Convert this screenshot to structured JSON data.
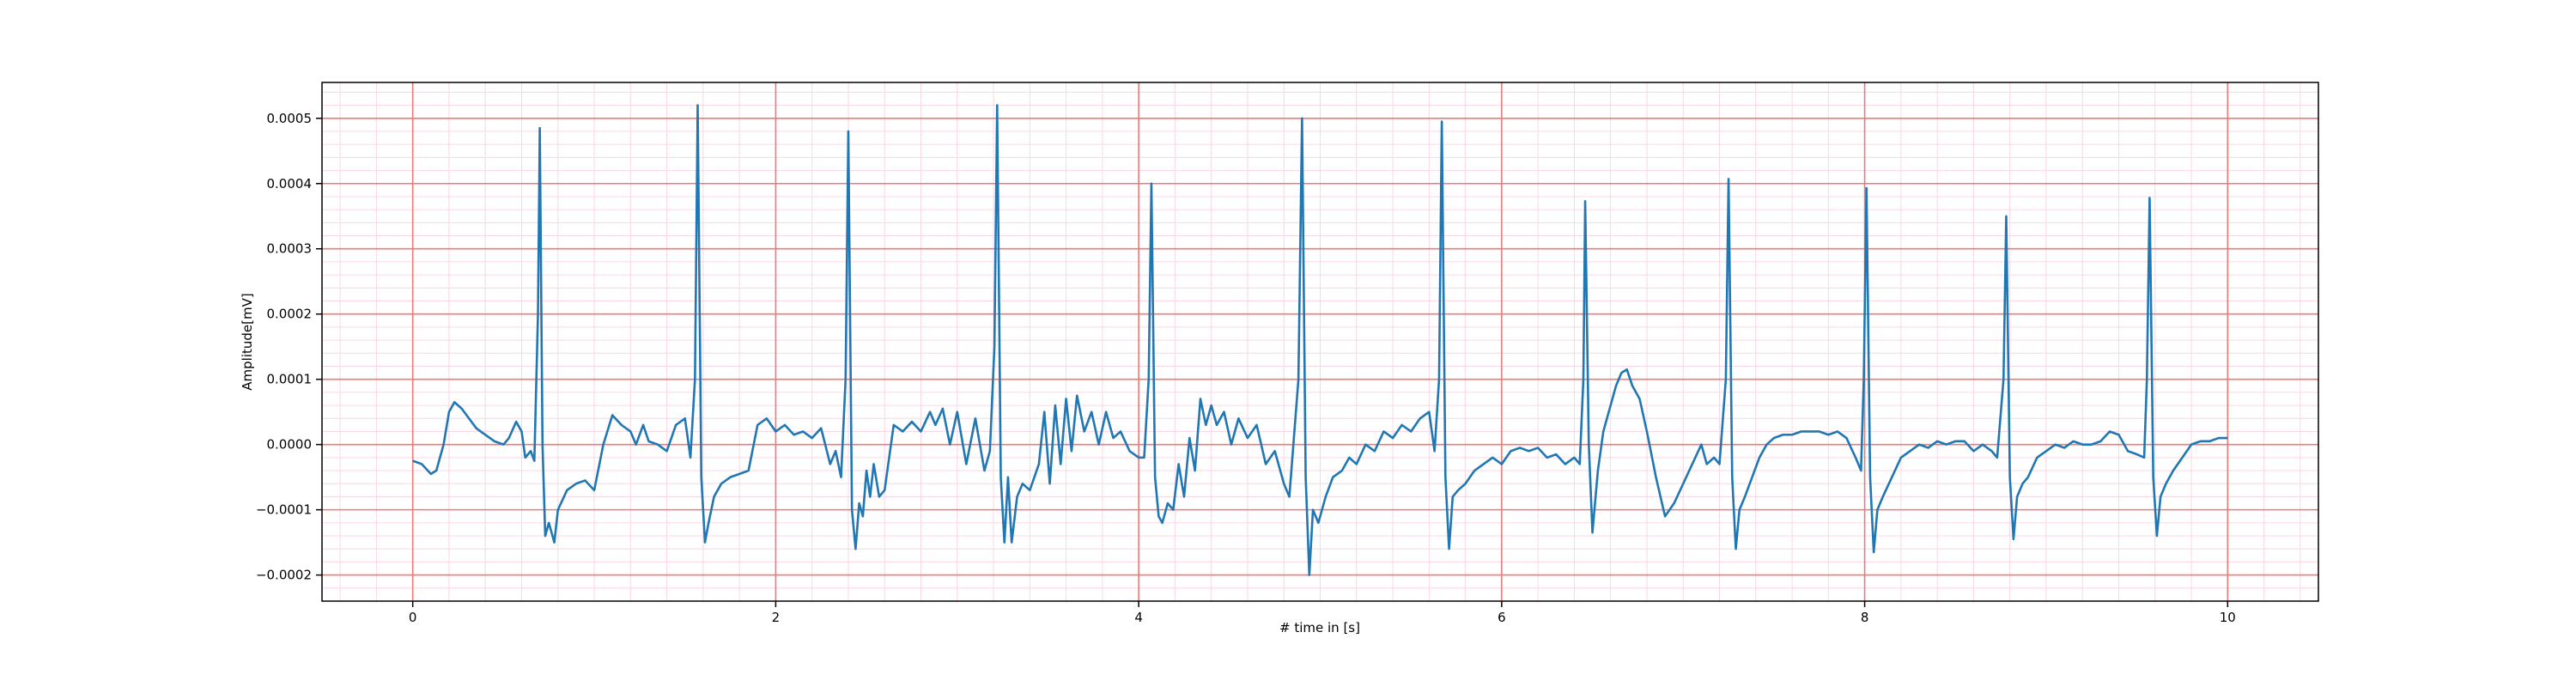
{
  "chart_data": {
    "type": "line",
    "xlabel": "# time in [s]",
    "ylabel": "Amplitude[mV]",
    "x": [
      0,
      0.05,
      0.1,
      0.13,
      0.17,
      0.2,
      0.23,
      0.27,
      0.31,
      0.35,
      0.4,
      0.45,
      0.5,
      0.53,
      0.57,
      0.6,
      0.62,
      0.65,
      0.67,
      0.69,
      0.7,
      0.715,
      0.73,
      0.75,
      0.78,
      0.8,
      0.85,
      0.9,
      0.95,
      1.0,
      1.05,
      1.1,
      1.15,
      1.2,
      1.23,
      1.27,
      1.3,
      1.35,
      1.4,
      1.45,
      1.5,
      1.53,
      1.555,
      1.57,
      1.59,
      1.61,
      1.63,
      1.66,
      1.7,
      1.75,
      1.8,
      1.85,
      1.9,
      1.95,
      2.0,
      2.05,
      2.1,
      2.15,
      2.2,
      2.25,
      2.3,
      2.33,
      2.36,
      2.385,
      2.4,
      2.42,
      2.44,
      2.46,
      2.48,
      2.5,
      2.52,
      2.54,
      2.57,
      2.6,
      2.65,
      2.7,
      2.75,
      2.8,
      2.85,
      2.88,
      2.92,
      2.96,
      3.0,
      3.05,
      3.1,
      3.15,
      3.18,
      3.205,
      3.22,
      3.24,
      3.26,
      3.28,
      3.3,
      3.33,
      3.36,
      3.4,
      3.45,
      3.48,
      3.51,
      3.54,
      3.57,
      3.6,
      3.63,
      3.66,
      3.7,
      3.74,
      3.78,
      3.82,
      3.86,
      3.9,
      3.95,
      4.0,
      4.03,
      4.055,
      4.07,
      4.09,
      4.11,
      4.13,
      4.16,
      4.19,
      4.22,
      4.25,
      4.28,
      4.31,
      4.34,
      4.37,
      4.4,
      4.43,
      4.47,
      4.51,
      4.55,
      4.6,
      4.65,
      4.7,
      4.75,
      4.8,
      4.83,
      4.88,
      4.9,
      4.92,
      4.94,
      4.96,
      4.99,
      5.03,
      5.07,
      5.12,
      5.16,
      5.2,
      5.25,
      5.3,
      5.35,
      5.4,
      5.45,
      5.5,
      5.55,
      5.6,
      5.63,
      5.655,
      5.67,
      5.69,
      5.71,
      5.73,
      5.76,
      5.8,
      5.85,
      5.9,
      5.95,
      6.0,
      6.05,
      6.1,
      6.15,
      6.2,
      6.25,
      6.3,
      6.35,
      6.4,
      6.43,
      6.45,
      6.46,
      6.48,
      6.5,
      6.53,
      6.56,
      6.6,
      6.63,
      6.66,
      6.69,
      6.72,
      6.76,
      6.8,
      6.85,
      6.9,
      6.95,
      7.0,
      7.05,
      7.1,
      7.13,
      7.17,
      7.2,
      7.235,
      7.25,
      7.27,
      7.29,
      7.31,
      7.34,
      7.38,
      7.42,
      7.46,
      7.5,
      7.55,
      7.6,
      7.65,
      7.7,
      7.75,
      7.8,
      7.85,
      7.9,
      7.95,
      7.98,
      7.995,
      8.01,
      8.03,
      8.05,
      8.07,
      8.1,
      8.15,
      8.2,
      8.25,
      8.3,
      8.35,
      8.4,
      8.45,
      8.5,
      8.55,
      8.6,
      8.65,
      8.7,
      8.73,
      8.765,
      8.78,
      8.8,
      8.82,
      8.84,
      8.87,
      8.9,
      8.95,
      9.0,
      9.05,
      9.1,
      9.15,
      9.2,
      9.25,
      9.3,
      9.35,
      9.4,
      9.45,
      9.5,
      9.54,
      9.555,
      9.57,
      9.59,
      9.61,
      9.63,
      9.66,
      9.7,
      9.75,
      9.8,
      9.85,
      9.9,
      9.95,
      10.0
    ],
    "values": [
      -2.5e-05,
      -3e-05,
      -4.5e-05,
      -4e-05,
      0,
      5e-05,
      6.5e-05,
      5.5e-05,
      4e-05,
      2.5e-05,
      1.5e-05,
      5e-06,
      0,
      1e-05,
      3.5e-05,
      2e-05,
      -2e-05,
      -1e-05,
      -2.5e-05,
      0.0002,
      0.000485,
      0,
      -0.00014,
      -0.00012,
      -0.00015,
      -0.0001,
      -7e-05,
      -6e-05,
      -5.5e-05,
      -7e-05,
      0,
      4.5e-05,
      3e-05,
      2e-05,
      0,
      3e-05,
      5e-06,
      0,
      -1e-05,
      3e-05,
      4e-05,
      -2e-05,
      0.0001,
      0.00052,
      -5e-05,
      -0.00015,
      -0.00012,
      -8e-05,
      -6e-05,
      -5e-05,
      -4.5e-05,
      -4e-05,
      3e-05,
      4e-05,
      2e-05,
      3e-05,
      1.5e-05,
      2e-05,
      1e-05,
      2.5e-05,
      -3e-05,
      -1e-05,
      -5e-05,
      0.0001,
      0.00048,
      -0.0001,
      -0.00016,
      -9e-05,
      -0.00011,
      -4e-05,
      -8e-05,
      -3e-05,
      -8e-05,
      -7e-05,
      3e-05,
      2e-05,
      3.5e-05,
      2e-05,
      5e-05,
      3e-05,
      5.5e-05,
      0,
      5e-05,
      -3e-05,
      4e-05,
      -4e-05,
      -1e-05,
      0.00015,
      0.00052,
      -5e-05,
      -0.00015,
      -5e-05,
      -0.00015,
      -8e-05,
      -6e-05,
      -7e-05,
      -3e-05,
      5e-05,
      -6e-05,
      6e-05,
      -3e-05,
      7e-05,
      -1e-05,
      7.5e-05,
      2e-05,
      5e-05,
      0,
      5e-05,
      1e-05,
      2e-05,
      -1e-05,
      -2e-05,
      -2e-05,
      0.0001,
      0.0004,
      -5e-05,
      -0.00011,
      -0.00012,
      -9e-05,
      -0.0001,
      -3e-05,
      -8e-05,
      1e-05,
      -4e-05,
      7e-05,
      3e-05,
      6e-05,
      3e-05,
      5e-05,
      0,
      4e-05,
      1e-05,
      3e-05,
      -3e-05,
      -1e-05,
      -6e-05,
      -8e-05,
      0.0001,
      0.0005,
      -5e-05,
      -0.0002,
      -0.0001,
      -0.00012,
      -8e-05,
      -5e-05,
      -4e-05,
      -2e-05,
      -3e-05,
      0,
      -1e-05,
      2e-05,
      1e-05,
      3e-05,
      2e-05,
      4e-05,
      5e-05,
      -1e-05,
      0.0001,
      0.000495,
      -5e-05,
      -0.00016,
      -8e-05,
      -7e-05,
      -6e-05,
      -4e-05,
      -3e-05,
      -2e-05,
      -3e-05,
      -1e-05,
      -5e-06,
      -1e-05,
      -5e-06,
      -2e-05,
      -1.5e-05,
      -3e-05,
      -2e-05,
      -3e-05,
      0.0001,
      0.000373,
      0,
      -0.000135,
      -4e-05,
      2e-05,
      6e-05,
      9e-05,
      0.00011,
      0.000115,
      9e-05,
      7e-05,
      2e-05,
      -5e-05,
      -0.00011,
      -9e-05,
      -6e-05,
      -3e-05,
      0,
      -3e-05,
      -2e-05,
      -3e-05,
      0.0001,
      0.000407,
      -5e-05,
      -0.00016,
      -0.0001,
      -8e-05,
      -5e-05,
      -2e-05,
      0,
      1e-05,
      1.5e-05,
      1.5e-05,
      2e-05,
      2e-05,
      2e-05,
      1.5e-05,
      2e-05,
      1e-05,
      -2e-05,
      -4e-05,
      0.0001,
      0.000393,
      -5e-05,
      -0.000165,
      -0.0001,
      -8e-05,
      -5e-05,
      -2e-05,
      -1e-05,
      0,
      -5e-06,
      5e-06,
      0,
      5e-06,
      5e-06,
      -1e-05,
      0,
      -1e-05,
      -2e-05,
      0.0001,
      0.00035,
      -5e-05,
      -0.000145,
      -8e-05,
      -6e-05,
      -5e-05,
      -2e-05,
      -1e-05,
      0,
      -5e-06,
      5e-06,
      0,
      0,
      5e-06,
      2e-05,
      1.5e-05,
      -1e-05,
      -1.5e-05,
      -2e-05,
      0.0001,
      0.000378,
      -5e-05,
      -0.00014,
      -8e-05,
      -6e-05,
      -4e-05,
      -2e-05,
      0,
      5e-06,
      5e-06,
      1e-05,
      1e-05
    ],
    "color": "#1f77b4",
    "xlim": [
      -0.5,
      10.5
    ],
    "xticks": [
      0,
      2,
      4,
      6,
      8,
      10
    ],
    "ylim": [
      -0.00024,
      0.000555
    ],
    "yticks": [
      {
        "value": -0.0002,
        "label": "−0.0002"
      },
      {
        "value": -0.0001,
        "label": "−0.0001"
      },
      {
        "value": 0,
        "label": "0.0000"
      },
      0.0001,
      0.0002,
      0.0003,
      0.0004,
      0.0005
    ],
    "grid": true,
    "minor_grid": true,
    "grid_color": "#f07878",
    "minor_grid_color": "#fbd6e4"
  }
}
